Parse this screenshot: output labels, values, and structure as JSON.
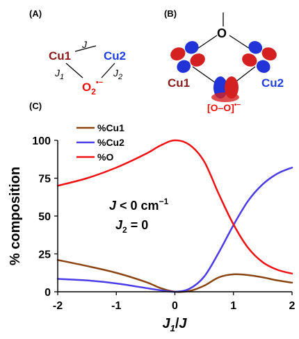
{
  "panels": {
    "a": "(A)",
    "b": "(B)",
    "c": "(C)"
  },
  "scheme_a": {
    "cu1": "Cu1",
    "cu2": "Cu2",
    "j": "J",
    "j1": "J",
    "j1_sub": "1",
    "j2": "J",
    "j2_sub": "2",
    "o2": "O",
    "o2_sub": "2",
    "o2_sup": "•−"
  },
  "scheme_b": {
    "o_bridge": "O",
    "cu1": "Cu1",
    "cu2": "Cu2",
    "peroxo": "[O–O]",
    "peroxo_sup": "•−"
  },
  "colors": {
    "cu1": "#8B1A1A",
    "cu2": "#1F3FE0",
    "o": "#E8100C",
    "cu1_line": "#8B4513",
    "cu2_line": "#4B3AE8",
    "o_line": "#EE1111"
  },
  "annotation": {
    "line1_var": "J",
    "line1_rest": " < 0 cm",
    "line1_sup": "−1",
    "line2_var": "J",
    "line2_sub": "2",
    "line2_rest": " = 0"
  },
  "chart_data": {
    "type": "line",
    "xlabel_var1": "J",
    "xlabel_sub": "1",
    "xlabel_slash": "/",
    "xlabel_var2": "J",
    "ylabel": "% composition",
    "xlim": [
      -2,
      2
    ],
    "ylim": [
      0,
      100
    ],
    "xticks": [
      -2,
      -1,
      0,
      1,
      2
    ],
    "yticks": [
      0,
      25,
      50,
      75,
      100
    ],
    "legend_position": "top-left",
    "series": [
      {
        "name": "%Cu1",
        "color": "#8B4513",
        "x": [
          -2,
          -1.5,
          -1,
          -0.5,
          -0.25,
          0,
          0.25,
          0.5,
          0.75,
          1,
          1.25,
          1.5,
          1.75,
          2
        ],
        "y": [
          21,
          17,
          12.5,
          6.5,
          2.5,
          0,
          0.5,
          4,
          9.5,
          11.5,
          11,
          9.5,
          7.5,
          6
        ]
      },
      {
        "name": "%Cu2",
        "color": "#4B3AE8",
        "x": [
          -2,
          -1.5,
          -1,
          -0.5,
          -0.25,
          0,
          0.25,
          0.5,
          0.75,
          1,
          1.25,
          1.5,
          1.75,
          2
        ],
        "y": [
          8.5,
          7.5,
          5.5,
          2.5,
          1,
          0,
          2,
          10,
          26,
          44,
          60,
          71,
          78,
          82
        ]
      },
      {
        "name": "%O",
        "color": "#EE1111",
        "x": [
          -2,
          -1.5,
          -1,
          -0.5,
          -0.25,
          0,
          0.25,
          0.5,
          0.75,
          1,
          1.25,
          1.5,
          1.75,
          2
        ],
        "y": [
          70,
          75,
          82,
          91,
          96.5,
          100,
          97,
          86,
          64.5,
          44.5,
          29,
          19.5,
          14.5,
          12
        ]
      }
    ]
  }
}
